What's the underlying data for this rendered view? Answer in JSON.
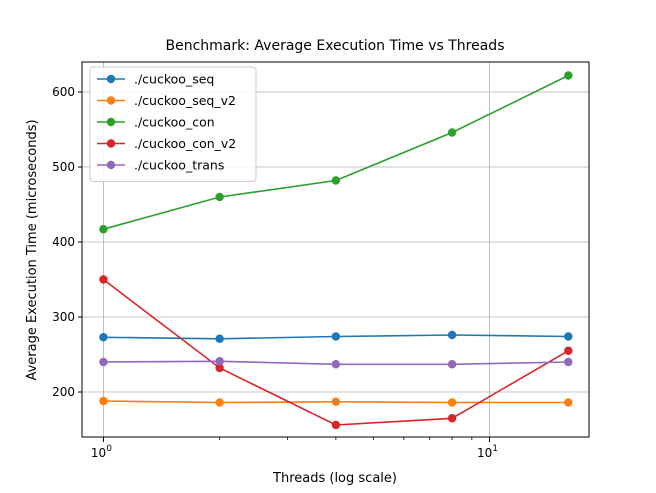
{
  "chart_data": {
    "type": "line",
    "title": "Benchmark: Average Execution Time vs Threads",
    "xlabel": "Threads (log scale)",
    "ylabel": "Average Execution Time (microseconds)",
    "x_scale": "log",
    "xlim": [
      0.88,
      18.1
    ],
    "ylim": [
      140,
      640
    ],
    "x_ticks": [
      {
        "value": 1,
        "base": "10",
        "exponent": "0"
      },
      {
        "value": 10,
        "base": "10",
        "exponent": "1"
      }
    ],
    "y_ticks": [
      200,
      300,
      400,
      500,
      600
    ],
    "grid": true,
    "legend_position": "top-left",
    "x": [
      1,
      2,
      4,
      8,
      16
    ],
    "series": [
      {
        "name": "./cuckoo_seq",
        "color": "#1f77b4",
        "values": [
          273,
          271,
          274,
          276,
          274
        ]
      },
      {
        "name": "./cuckoo_seq_v2",
        "color": "#ff7f0e",
        "values": [
          188,
          186,
          187,
          186,
          186
        ]
      },
      {
        "name": "./cuckoo_con",
        "color": "#2ca02c",
        "values": [
          417,
          460,
          482,
          546,
          622
        ]
      },
      {
        "name": "./cuckoo_con_v2",
        "color": "#d62728",
        "values": [
          350,
          232,
          156,
          165,
          255
        ]
      },
      {
        "name": "./cuckoo_trans",
        "color": "#9467bd",
        "values": [
          240,
          241,
          237,
          237,
          240
        ]
      }
    ]
  }
}
